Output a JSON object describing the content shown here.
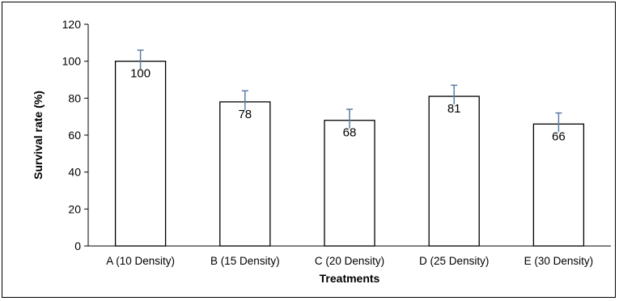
{
  "chart_data": {
    "type": "bar",
    "title": "",
    "xlabel": "Treatments",
    "ylabel": "Survival rate (%)",
    "ylim": [
      0,
      120
    ],
    "yticks": [
      0,
      20,
      40,
      60,
      80,
      100,
      120
    ],
    "grid": false,
    "categories": [
      "A (10 Density)",
      "B (15 Density)",
      "C (20 Density)",
      "D (25 Density)",
      "E (30 Density)"
    ],
    "values": [
      100,
      78,
      68,
      81,
      66
    ],
    "error_upper": [
      6,
      6,
      6,
      6,
      6
    ],
    "data_labels": [
      "100",
      "78",
      "68",
      "81",
      "66"
    ],
    "colors": {
      "bar_fill": "#ffffff",
      "bar_stroke": "#000000",
      "error_bar": "#5b7ea3"
    }
  }
}
